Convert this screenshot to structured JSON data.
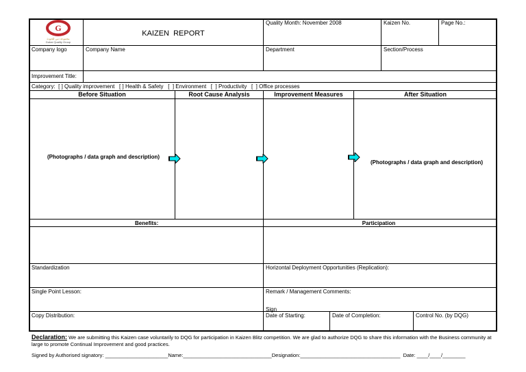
{
  "header": {
    "title": "KAIZEN  REPORT",
    "quality_month": "Quality Month: November 2008",
    "kaizen_no": "Kaizen No.",
    "page_no": "Page No.:"
  },
  "logo": {
    "text_line1": "DUBAI QUALITY GROUP",
    "text_line2": "Dubai Quality Group",
    "color": "#c0272d"
  },
  "row2": {
    "company_logo": "Company logo",
    "company_name": "Company Name",
    "department": "Department",
    "section": "Section/Process"
  },
  "improvement_title": "Improvement Title:",
  "category": "Category:  [ ] Quality improvement   [ ] Health & Safety   [  ] Environment   [  ] Productivity   [  ] Office processes",
  "sections": {
    "before": "Before Situation",
    "root": "Root Cause Analysis",
    "measures": "Improvement Measures",
    "after": "After Situation"
  },
  "placeholder_before": "(Photographs / data graph and description)",
  "placeholder_after": "(Photographs / data graph and description)",
  "benefits": "Benefits:",
  "participation": "Participation",
  "standardization": "Standardization",
  "horizontal": "Horizontal Deployment Opportunities (Replication):",
  "spl": "Single Point Lesson:",
  "remark": "Remark / Management Comments:",
  "sign": "Sign",
  "copy": "Copy Distribution:",
  "date_start": "Date of Starting:",
  "date_completion": "Date of Completion:",
  "control": "Control No. (by DQG)",
  "declaration": {
    "label": "Declaration:",
    "text": " We are submitting this Kaizen case voluntarily to DQG for participation in Kaizen Blitz competition. We are glad to authorize DQG to share this information with the Business community at large to promote Continual Improvement and good practices."
  },
  "signature_line": "Signed by Authorised signatory: ______________________Name:_______________________________Designation:___________________________________  Date: ____/____/________",
  "arrow_color": "#00e5ee"
}
